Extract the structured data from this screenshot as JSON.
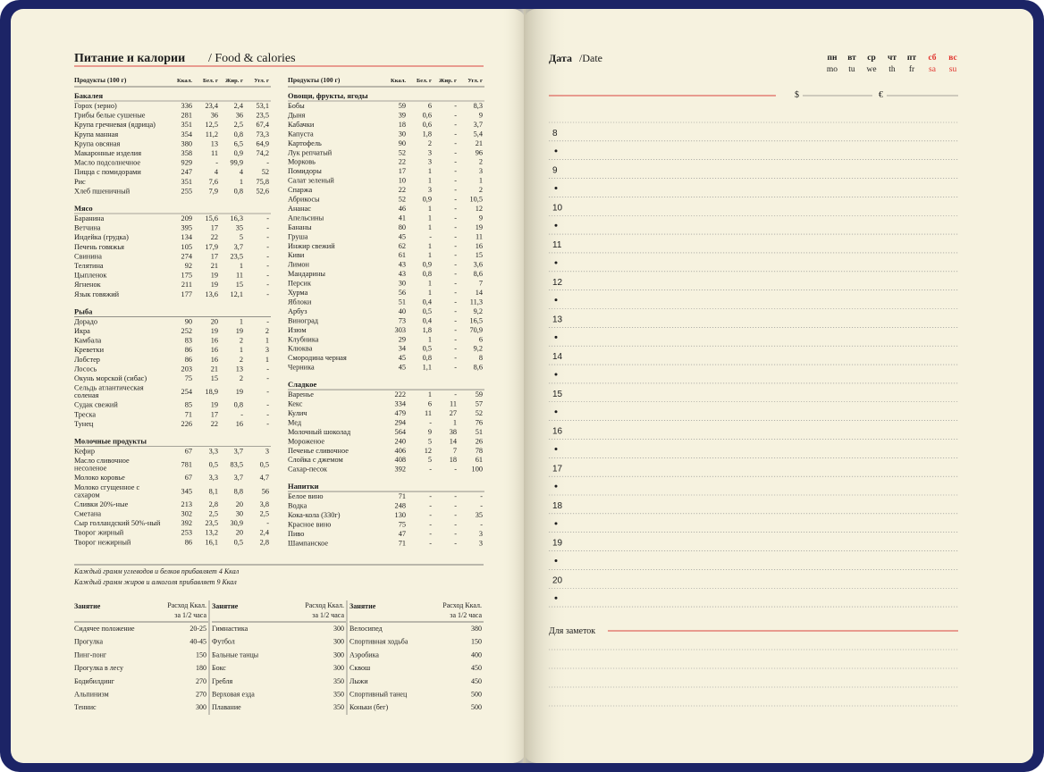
{
  "header": {
    "title": "Питание и калории",
    "subtitle": "/ Food & calories"
  },
  "food_tables": [
    {
      "columns": [
        "Продукты (100 г)",
        "Ккал.",
        "Бел. г",
        "Жир. г",
        "Угл. г"
      ],
      "groups": [
        {
          "name": "Бакалея",
          "rows": [
            [
              "Горох (зерно)",
              "336",
              "23,4",
              "2,4",
              "53,1"
            ],
            [
              "Грибы белые сушеные",
              "281",
              "36",
              "36",
              "23,5"
            ],
            [
              "Крупа гречневая (ядрица)",
              "351",
              "12,5",
              "2,5",
              "67,4"
            ],
            [
              "Крупа манная",
              "354",
              "11,2",
              "0,8",
              "73,3"
            ],
            [
              "Крупа овсяная",
              "380",
              "13",
              "6,5",
              "64,9"
            ],
            [
              "Макаронные изделия",
              "358",
              "11",
              "0,9",
              "74,2"
            ],
            [
              "Масло подсолнечное",
              "929",
              "-",
              "99,9",
              "-"
            ],
            [
              "Пицца с помидорами",
              "247",
              "4",
              "4",
              "52"
            ],
            [
              "Рис",
              "351",
              "7,6",
              "1",
              "75,8"
            ],
            [
              "Хлеб пшеничный",
              "255",
              "7,9",
              "0,8",
              "52,6"
            ]
          ]
        },
        {
          "name": "Мясо",
          "rows": [
            [
              "Баранина",
              "209",
              "15,6",
              "16,3",
              "-"
            ],
            [
              "Ветчина",
              "395",
              "17",
              "35",
              "-"
            ],
            [
              "Индейка (грудка)",
              "134",
              "22",
              "5",
              "-"
            ],
            [
              "Печень говяжья",
              "105",
              "17,9",
              "3,7",
              "-"
            ],
            [
              "Свинина",
              "274",
              "17",
              "23,5",
              "-"
            ],
            [
              "Телятина",
              "92",
              "21",
              "1",
              "-"
            ],
            [
              "Цыпленок",
              "175",
              "19",
              "11",
              "-"
            ],
            [
              "Ягненок",
              "211",
              "19",
              "15",
              "-"
            ],
            [
              "Язык говяжий",
              "177",
              "13,6",
              "12,1",
              "-"
            ]
          ]
        },
        {
          "name": "Рыба",
          "rows": [
            [
              "Дорадо",
              "90",
              "20",
              "1",
              "-"
            ],
            [
              "Икра",
              "252",
              "19",
              "19",
              "2"
            ],
            [
              "Камбала",
              "83",
              "16",
              "2",
              "1"
            ],
            [
              "Креветки",
              "86",
              "16",
              "1",
              "3"
            ],
            [
              "Лобстер",
              "86",
              "16",
              "2",
              "1"
            ],
            [
              "Лосось",
              "203",
              "21",
              "13",
              "-"
            ],
            [
              "Окунь морской (сибас)",
              "75",
              "15",
              "2",
              "-"
            ],
            [
              "Сельдь атлантическая соленая",
              "254",
              "18,9",
              "19",
              "-"
            ],
            [
              "Судак свежий",
              "85",
              "19",
              "0,8",
              "-"
            ],
            [
              "Треска",
              "71",
              "17",
              "-",
              "-"
            ],
            [
              "Тунец",
              "226",
              "22",
              "16",
              "-"
            ]
          ]
        },
        {
          "name": "Молочные продукты",
          "rows": [
            [
              "Кефир",
              "67",
              "3,3",
              "3,7",
              "3"
            ],
            [
              "Масло сливочное несоленое",
              "781",
              "0,5",
              "83,5",
              "0,5"
            ],
            [
              "Молоко коровье",
              "67",
              "3,3",
              "3,7",
              "4,7"
            ],
            [
              "Молоко сгущенное с сахаром",
              "345",
              "8,1",
              "8,8",
              "56"
            ],
            [
              "Сливки 20%-ные",
              "213",
              "2,8",
              "20",
              "3,8"
            ],
            [
              "Сметана",
              "302",
              "2,5",
              "30",
              "2,5"
            ],
            [
              "Сыр голландский 50%-ный",
              "392",
              "23,5",
              "30,9",
              "-"
            ],
            [
              "Творог жирный",
              "253",
              "13,2",
              "20",
              "2,4"
            ],
            [
              "Творог нежирный",
              "86",
              "16,1",
              "0,5",
              "2,8"
            ]
          ]
        }
      ]
    },
    {
      "columns": [
        "Продукты (100 г)",
        "Ккал.",
        "Бел. г",
        "Жир. г",
        "Угл. г"
      ],
      "groups": [
        {
          "name": "Овощи, фрукты, ягоды",
          "rows": [
            [
              "Бобы",
              "59",
              "6",
              "-",
              "8,3"
            ],
            [
              "Дыня",
              "39",
              "0,6",
              "-",
              "9"
            ],
            [
              "Кабачки",
              "18",
              "0,6",
              "-",
              "3,7"
            ],
            [
              "Капуста",
              "30",
              "1,8",
              "-",
              "5,4"
            ],
            [
              "Картофель",
              "90",
              "2",
              "-",
              "21"
            ],
            [
              "Лук репчатый",
              "52",
              "3",
              "-",
              "96"
            ],
            [
              "Морковь",
              "22",
              "3",
              "-",
              "2"
            ],
            [
              "Помидоры",
              "17",
              "1",
              "-",
              "3"
            ],
            [
              "Салат зеленый",
              "10",
              "1",
              "-",
              "1"
            ],
            [
              "Спаржа",
              "22",
              "3",
              "-",
              "2"
            ],
            [
              "Абрикосы",
              "52",
              "0,9",
              "-",
              "10,5"
            ],
            [
              "Ананас",
              "46",
              "1",
              "-",
              "12"
            ],
            [
              "Апельсины",
              "41",
              "1",
              "-",
              "9"
            ],
            [
              "Бананы",
              "80",
              "1",
              "-",
              "19"
            ],
            [
              "Груша",
              "45",
              "-",
              "-",
              "11"
            ],
            [
              "Инжир свежий",
              "62",
              "1",
              "-",
              "16"
            ],
            [
              "Киви",
              "61",
              "1",
              "-",
              "15"
            ],
            [
              "Лимон",
              "43",
              "0,9",
              "-",
              "3,6"
            ],
            [
              "Мандарины",
              "43",
              "0,8",
              "-",
              "8,6"
            ],
            [
              "Персик",
              "30",
              "1",
              "-",
              "7"
            ],
            [
              "Хурма",
              "56",
              "1",
              "-",
              "14"
            ],
            [
              "Яблоки",
              "51",
              "0,4",
              "-",
              "11,3"
            ],
            [
              "Арбуз",
              "40",
              "0,5",
              "-",
              "9,2"
            ],
            [
              "Виноград",
              "73",
              "0,4",
              "-",
              "16,5"
            ],
            [
              "Изюм",
              "303",
              "1,8",
              "-",
              "70,9"
            ],
            [
              "Клубника",
              "29",
              "1",
              "-",
              "6"
            ],
            [
              "Клюква",
              "34",
              "0,5",
              "-",
              "9,2"
            ],
            [
              "Смородина черная",
              "45",
              "0,8",
              "-",
              "8"
            ],
            [
              "Черника",
              "45",
              "1,1",
              "-",
              "8,6"
            ]
          ]
        },
        {
          "name": "Сладкое",
          "rows": [
            [
              "Варенье",
              "222",
              "1",
              "-",
              "59"
            ],
            [
              "Кекс",
              "334",
              "6",
              "11",
              "57"
            ],
            [
              "Кулич",
              "479",
              "11",
              "27",
              "52"
            ],
            [
              "Мед",
              "294",
              "-",
              "1",
              "76"
            ],
            [
              "Молочный шоколад",
              "564",
              "9",
              "38",
              "51"
            ],
            [
              "Мороженое",
              "240",
              "5",
              "14",
              "26"
            ],
            [
              "Печенье сливочное",
              "406",
              "12",
              "7",
              "78"
            ],
            [
              "Слойка с джемом",
              "408",
              "5",
              "18",
              "61"
            ],
            [
              "Сахар-песок",
              "392",
              "-",
              "-",
              "100"
            ]
          ]
        },
        {
          "name": "Напитки",
          "rows": [
            [
              "Белое вино",
              "71",
              "-",
              "-",
              "-"
            ],
            [
              "Водка",
              "248",
              "-",
              "-",
              "-"
            ],
            [
              "Кока-кола (330г)",
              "130",
              "-",
              "-",
              "35"
            ],
            [
              "Красное вино",
              "75",
              "-",
              "-",
              "-"
            ],
            [
              "Пиво",
              "47",
              "-",
              "-",
              "3"
            ],
            [
              "Шампанское",
              "71",
              "-",
              "-",
              "3"
            ]
          ]
        }
      ]
    }
  ],
  "notes": [
    "Каждый грамм углеводов и белков прибавляет 4 Ккал",
    "Каждый грамм жиров и алкоголя прибавляет 9 Ккал"
  ],
  "activity_tables": [
    {
      "columns": [
        "Занятие",
        "Расход Ккал.",
        "за 1/2 часа"
      ],
      "rows": [
        [
          "Сидячее положение",
          "20-25"
        ],
        [
          "Прогулка",
          "40-45"
        ],
        [
          "Пинг-понг",
          "150"
        ],
        [
          "Прогулка в лесу",
          "180"
        ],
        [
          "Бодибилдинг",
          "270"
        ],
        [
          "Альпинизм",
          "270"
        ],
        [
          "Теннис",
          "300"
        ]
      ]
    },
    {
      "columns": [
        "Занятие",
        "Расход Ккал.",
        "за 1/2 часа"
      ],
      "rows": [
        [
          "Гимнастика",
          "300"
        ],
        [
          "Футбол",
          "300"
        ],
        [
          "Бальные танцы",
          "300"
        ],
        [
          "Бокс",
          "300"
        ],
        [
          "Гребля",
          "350"
        ],
        [
          "Верховая езда",
          "350"
        ],
        [
          "Плавание",
          "350"
        ]
      ]
    },
    {
      "columns": [
        "Занятие",
        "Расход Ккал.",
        "за 1/2 часа"
      ],
      "rows": [
        [
          "Велосипед",
          "380"
        ],
        [
          "Спортивная ходьба",
          "150"
        ],
        [
          "Аэробика",
          "400"
        ],
        [
          "Сквош",
          "450"
        ],
        [
          "Лыжи",
          "450"
        ],
        [
          "Спортивный танец",
          "500"
        ],
        [
          "Коньки (бег)",
          "500"
        ]
      ]
    }
  ],
  "planner": {
    "date_label": "Дата",
    "date_label_en": "/Date",
    "weekdays": [
      [
        "пн",
        "mo"
      ],
      [
        "вт",
        "tu"
      ],
      [
        "ср",
        "we"
      ],
      [
        "чт",
        "th"
      ],
      [
        "пт",
        "fr"
      ],
      [
        "сб",
        "sa"
      ],
      [
        "вс",
        "su"
      ]
    ],
    "currency": [
      "$",
      "€"
    ],
    "hours": [
      "8",
      "9",
      "10",
      "11",
      "12",
      "13",
      "14",
      "15",
      "16",
      "17",
      "18",
      "19",
      "20"
    ],
    "notes_label": "Для заметок"
  }
}
